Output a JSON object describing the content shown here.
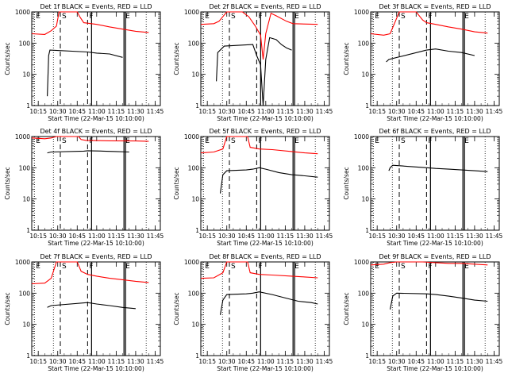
{
  "ylabel": "Counts/sec",
  "xlabel": "Start Time (22-Mar-15 10:10:00)",
  "title_suffix": "BLACK = Events, RED = LLD",
  "colors": {
    "events": "#000000",
    "lld": "#ff0000",
    "axes": "#000000"
  },
  "x_ticks": [
    "10:15",
    "10:30",
    "10:45",
    "11:00",
    "11:15",
    "11:30",
    "11:45"
  ],
  "y_ticks": [
    "1",
    "10",
    "100",
    "1000"
  ],
  "chart_data": [
    {
      "type": "line",
      "title": "Det 1f",
      "yscale": "log",
      "xlim": [
        "10:10",
        "11:49"
      ],
      "ylim": [
        1,
        1000
      ],
      "markers": [
        {
          "label": "E",
          "time": "10:12"
        },
        {
          "label": "S",
          "time": "10:32"
        },
        {
          "label": "F",
          "time": "10:53"
        },
        {
          "label": "E",
          "time": "11:21"
        }
      ],
      "series": [
        {
          "name": "Events",
          "color": "#000000",
          "points": [
            [
              "10:22",
              2
            ],
            [
              "10:23",
              40
            ],
            [
              "10:24",
              60
            ],
            [
              "10:53",
              52
            ],
            [
              "11:00",
              48
            ],
            [
              "11:10",
              45
            ],
            [
              "11:20",
              35
            ]
          ]
        },
        {
          "name": "LLD",
          "color": "#ff0000",
          "points": [
            [
              "10:10",
              200
            ],
            [
              "10:20",
              190
            ],
            [
              "10:25",
              250
            ],
            [
              "10:29",
              350
            ],
            [
              "10:31",
              1000
            ],
            [
              "10:45",
              1000
            ],
            [
              "10:47",
              700
            ],
            [
              "10:50",
              450
            ],
            [
              "11:00",
              400
            ],
            [
              "11:10",
              330
            ],
            [
              "11:20",
              280
            ],
            [
              "11:30",
              240
            ],
            [
              "11:40",
              220
            ]
          ]
        }
      ]
    },
    {
      "type": "line",
      "title": "Det 2f",
      "yscale": "log",
      "xlim": [
        "10:10",
        "11:49"
      ],
      "ylim": [
        1,
        1000
      ],
      "markers": [
        {
          "label": "E",
          "time": "10:12"
        },
        {
          "label": "S",
          "time": "10:32"
        },
        {
          "label": "F",
          "time": "10:53"
        },
        {
          "label": "E",
          "time": "11:21"
        }
      ],
      "series": [
        {
          "name": "Events",
          "color": "#000000",
          "points": [
            [
              "10:22",
              6
            ],
            [
              "10:23",
              50
            ],
            [
              "10:28",
              80
            ],
            [
              "10:50",
              90
            ],
            [
              "10:53",
              40
            ],
            [
              "10:56",
              20
            ],
            [
              "10:58",
              1
            ],
            [
              "11:00",
              30
            ],
            [
              "11:03",
              150
            ],
            [
              "11:08",
              130
            ],
            [
              "11:12",
              90
            ],
            [
              "11:16",
              70
            ],
            [
              "11:20",
              60
            ]
          ]
        },
        {
          "name": "LLD",
          "color": "#ff0000",
          "points": [
            [
              "10:10",
              400
            ],
            [
              "10:20",
              420
            ],
            [
              "10:24",
              500
            ],
            [
              "10:30",
              1000
            ],
            [
              "10:42",
              1000
            ],
            [
              "10:47",
              700
            ],
            [
              "10:52",
              350
            ],
            [
              "10:56",
              180
            ],
            [
              "10:58",
              30
            ],
            [
              "11:00",
              200
            ],
            [
              "11:04",
              900
            ],
            [
              "11:08",
              750
            ],
            [
              "11:16",
              500
            ],
            [
              "11:21",
              420
            ],
            [
              "11:40",
              400
            ]
          ]
        }
      ]
    },
    {
      "type": "line",
      "title": "Det 3f",
      "yscale": "log",
      "xlim": [
        "10:10",
        "11:49"
      ],
      "ylim": [
        1,
        1000
      ],
      "markers": [
        {
          "label": "E",
          "time": "10:12"
        },
        {
          "label": "S",
          "time": "10:32"
        },
        {
          "label": "F",
          "time": "10:53"
        },
        {
          "label": "E",
          "time": "11:21"
        }
      ],
      "series": [
        {
          "name": "Events",
          "color": "#000000",
          "points": [
            [
              "10:22",
              25
            ],
            [
              "10:24",
              30
            ],
            [
              "10:53",
              60
            ],
            [
              "11:00",
              65
            ],
            [
              "11:10",
              55
            ],
            [
              "11:20",
              50
            ],
            [
              "11:30",
              40
            ]
          ]
        },
        {
          "name": "LLD",
          "color": "#ff0000",
          "points": [
            [
              "10:10",
              200
            ],
            [
              "10:20",
              180
            ],
            [
              "10:25",
              200
            ],
            [
              "10:29",
              500
            ],
            [
              "10:32",
              1000
            ],
            [
              "10:45",
              1000
            ],
            [
              "10:50",
              550
            ],
            [
              "10:53",
              450
            ],
            [
              "11:00",
              400
            ],
            [
              "11:10",
              330
            ],
            [
              "11:20",
              280
            ],
            [
              "11:30",
              230
            ],
            [
              "11:40",
              210
            ]
          ]
        }
      ]
    },
    {
      "type": "line",
      "title": "Det 4f",
      "yscale": "log",
      "xlim": [
        "10:10",
        "11:49"
      ],
      "ylim": [
        1,
        1000
      ],
      "markers": [
        {
          "label": "E",
          "time": "10:12"
        },
        {
          "label": "S",
          "time": "10:32"
        },
        {
          "label": "F",
          "time": "10:53"
        },
        {
          "label": "E",
          "time": "11:21"
        }
      ],
      "series": [
        {
          "name": "Events",
          "color": "#000000",
          "points": [
            [
              "10:22",
              300
            ],
            [
              "10:25",
              320
            ],
            [
              "10:50",
              340
            ],
            [
              "10:53",
              350
            ],
            [
              "11:05",
              340
            ],
            [
              "11:15",
              330
            ],
            [
              "11:25",
              320
            ]
          ]
        },
        {
          "name": "LLD",
          "color": "#ff0000",
          "points": [
            [
              "10:10",
              900
            ],
            [
              "10:20",
              850
            ],
            [
              "10:25",
              900
            ],
            [
              "10:29",
              1000
            ],
            [
              "10:42",
              1000
            ],
            [
              "10:46",
              1000
            ],
            [
              "10:48",
              800
            ],
            [
              "10:52",
              750
            ],
            [
              "11:10",
              730
            ],
            [
              "11:30",
              720
            ],
            [
              "11:40",
              700
            ]
          ]
        }
      ]
    },
    {
      "type": "line",
      "title": "Det 5f",
      "yscale": "log",
      "xlim": [
        "10:10",
        "11:49"
      ],
      "ylim": [
        1,
        1000
      ],
      "markers": [
        {
          "label": "E",
          "time": "10:12"
        },
        {
          "label": "S",
          "time": "10:32"
        },
        {
          "label": "F",
          "time": "10:53"
        },
        {
          "label": "E",
          "time": "11:21"
        }
      ],
      "series": [
        {
          "name": "Events",
          "color": "#000000",
          "points": [
            [
              "10:25",
              15
            ],
            [
              "10:27",
              60
            ],
            [
              "10:30",
              80
            ],
            [
              "10:45",
              85
            ],
            [
              "10:50",
              90
            ],
            [
              "10:55",
              100
            ],
            [
              "11:00",
              90
            ],
            [
              "11:10",
              70
            ],
            [
              "11:20",
              60
            ],
            [
              "11:30",
              55
            ],
            [
              "11:40",
              50
            ]
          ]
        },
        {
          "name": "LLD",
          "color": "#ff0000",
          "points": [
            [
              "10:10",
              300
            ],
            [
              "10:20",
              320
            ],
            [
              "10:27",
              400
            ],
            [
              "10:30",
              1000
            ],
            [
              "10:42",
              1000
            ],
            [
              "10:46",
              1000
            ],
            [
              "10:48",
              450
            ],
            [
              "10:55",
              400
            ],
            [
              "11:05",
              380
            ],
            [
              "11:20",
              330
            ],
            [
              "11:30",
              300
            ],
            [
              "11:40",
              280
            ]
          ]
        }
      ]
    },
    {
      "type": "line",
      "title": "Det 6f",
      "yscale": "log",
      "xlim": [
        "10:10",
        "11:49"
      ],
      "ylim": [
        1,
        1000
      ],
      "markers": [
        {
          "label": "E",
          "time": "10:12"
        },
        {
          "label": "S",
          "time": "10:32"
        },
        {
          "label": "F",
          "time": "10:53"
        },
        {
          "label": "E",
          "time": "11:21"
        }
      ],
      "series": [
        {
          "name": "Events",
          "color": "#000000",
          "points": [
            [
              "10:24",
              80
            ],
            [
              "10:25",
              100
            ],
            [
              "10:27",
              120
            ],
            [
              "10:53",
              100
            ],
            [
              "11:00",
              95
            ],
            [
              "11:10",
              90
            ],
            [
              "11:20",
              85
            ],
            [
              "11:30",
              80
            ],
            [
              "11:40",
              75
            ]
          ]
        }
      ]
    },
    {
      "type": "line",
      "title": "Det 7f",
      "yscale": "log",
      "xlim": [
        "10:10",
        "11:49"
      ],
      "ylim": [
        1,
        1000
      ],
      "markers": [
        {
          "label": "E",
          "time": "10:12"
        },
        {
          "label": "S",
          "time": "10:32"
        },
        {
          "label": "F",
          "time": "10:53"
        },
        {
          "label": "E",
          "time": "11:21"
        }
      ],
      "series": [
        {
          "name": "Events",
          "color": "#000000",
          "points": [
            [
              "10:22",
              35
            ],
            [
              "10:25",
              40
            ],
            [
              "10:53",
              50
            ],
            [
              "11:00",
              45
            ],
            [
              "11:10",
              40
            ],
            [
              "11:20",
              35
            ],
            [
              "11:30",
              32
            ]
          ]
        },
        {
          "name": "LLD",
          "color": "#ff0000",
          "points": [
            [
              "10:10",
              200
            ],
            [
              "10:20",
              210
            ],
            [
              "10:25",
              300
            ],
            [
              "10:29",
              1000
            ],
            [
              "10:45",
              1000
            ],
            [
              "10:48",
              500
            ],
            [
              "10:53",
              400
            ],
            [
              "11:00",
              350
            ],
            [
              "11:10",
              300
            ],
            [
              "11:20",
              270
            ],
            [
              "11:30",
              240
            ],
            [
              "11:40",
              220
            ]
          ]
        }
      ]
    },
    {
      "type": "line",
      "title": "Det 8f",
      "yscale": "log",
      "xlim": [
        "10:10",
        "11:49"
      ],
      "ylim": [
        1,
        1000
      ],
      "markers": [
        {
          "label": "E",
          "time": "10:12"
        },
        {
          "label": "S",
          "time": "10:32"
        },
        {
          "label": "F",
          "time": "10:53"
        },
        {
          "label": "E",
          "time": "11:21"
        }
      ],
      "series": [
        {
          "name": "Events",
          "color": "#000000",
          "points": [
            [
              "10:25",
              20
            ],
            [
              "10:27",
              60
            ],
            [
              "10:30",
              90
            ],
            [
              "10:45",
              95
            ],
            [
              "10:50",
              100
            ],
            [
              "10:55",
              110
            ],
            [
              "11:05",
              90
            ],
            [
              "11:15",
              70
            ],
            [
              "11:25",
              55
            ],
            [
              "11:35",
              50
            ],
            [
              "11:40",
              45
            ]
          ]
        },
        {
          "name": "LLD",
          "color": "#ff0000",
          "points": [
            [
              "10:10",
              300
            ],
            [
              "10:20",
              310
            ],
            [
              "10:27",
              450
            ],
            [
              "10:30",
              1000
            ],
            [
              "10:42",
              1000
            ],
            [
              "10:46",
              1000
            ],
            [
              "10:48",
              450
            ],
            [
              "10:55",
              400
            ],
            [
              "11:05",
              380
            ],
            [
              "11:20",
              350
            ],
            [
              "11:30",
              330
            ],
            [
              "11:40",
              310
            ]
          ]
        }
      ]
    },
    {
      "type": "line",
      "title": "Det 9f",
      "yscale": "log",
      "xlim": [
        "10:10",
        "11:49"
      ],
      "ylim": [
        1,
        1000
      ],
      "markers": [
        {
          "label": "E",
          "time": "10:12"
        },
        {
          "label": "S",
          "time": "10:32"
        },
        {
          "label": "F",
          "time": "10:53"
        },
        {
          "label": "E",
          "time": "11:21"
        }
      ],
      "series": [
        {
          "name": "Events",
          "color": "#000000",
          "points": [
            [
              "10:25",
              30
            ],
            [
              "10:27",
              80
            ],
            [
              "10:30",
              100
            ],
            [
              "10:53",
              95
            ],
            [
              "11:00",
              90
            ],
            [
              "11:10",
              80
            ],
            [
              "11:20",
              70
            ],
            [
              "11:30",
              60
            ],
            [
              "11:40",
              55
            ]
          ]
        },
        {
          "name": "LLD",
          "color": "#ff0000",
          "points": [
            [
              "10:10",
              800
            ],
            [
              "10:20",
              850
            ],
            [
              "10:25",
              950
            ],
            [
              "10:30",
              1000
            ],
            [
              "10:50",
              1000
            ],
            [
              "11:00",
              950
            ],
            [
              "11:10",
              900
            ],
            [
              "11:20",
              900
            ],
            [
              "11:30",
              850
            ],
            [
              "11:40",
              800
            ]
          ]
        }
      ]
    }
  ]
}
